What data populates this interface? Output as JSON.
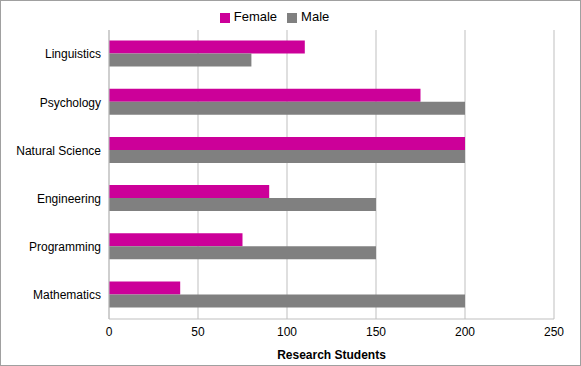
{
  "chart_data": {
    "type": "bar",
    "orientation": "horizontal",
    "categories": [
      "Linguistics",
      "Psychology",
      "Natural Science",
      "Engineering",
      "Programming",
      "Mathematics"
    ],
    "series": [
      {
        "name": "Female",
        "color": "#cc0099",
        "values": [
          110,
          175,
          200,
          90,
          75,
          40
        ]
      },
      {
        "name": "Male",
        "color": "#808080",
        "values": [
          80,
          200,
          200,
          150,
          150,
          200
        ]
      }
    ],
    "xlabel": "Research Students",
    "xlim": [
      0,
      250
    ],
    "xticks": [
      0,
      50,
      100,
      150,
      200,
      250
    ],
    "grid": true,
    "legend": "top"
  }
}
